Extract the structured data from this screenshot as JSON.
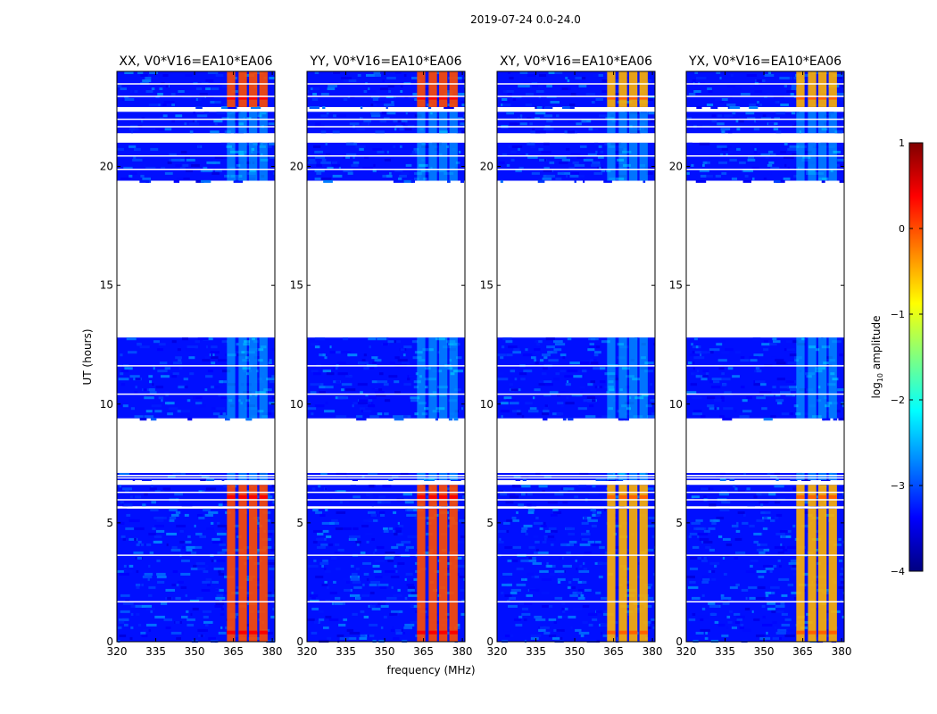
{
  "figure": {
    "title": "2019-07-24 0.0-24.0",
    "xlabel": "frequency (MHz)",
    "ylabel": "UT (hours)"
  },
  "colorbar": {
    "label": "log10 amplitude",
    "label_base": "log",
    "label_sub": "10",
    "label_rest": " amplitude",
    "range": [
      -4,
      1
    ],
    "ticks": [
      1,
      0,
      -1,
      -2,
      -3,
      -4
    ],
    "tick_labels": [
      "1",
      "0",
      "−1",
      "−2",
      "−3",
      "−4"
    ],
    "colormap": [
      "#000080",
      "#0000ff",
      "#0080ff",
      "#00ffff",
      "#80ff80",
      "#ffff00",
      "#ff8000",
      "#ff0000",
      "#800000"
    ]
  },
  "chart_data": [
    {
      "type": "heatmap",
      "title": "XX, V0*V16=EA10*EA06",
      "xlabel": "frequency (MHz)",
      "ylabel": "UT (hours)",
      "xlim": [
        320,
        381
      ],
      "ylim": [
        0,
        24
      ],
      "xticks": [
        320,
        335,
        350,
        365,
        380
      ],
      "yticks": [
        0,
        5,
        10,
        15,
        20
      ],
      "data_segments_hours": [
        [
          0,
          5.6
        ],
        [
          5.7,
          6.6
        ],
        [
          6.8,
          7.1
        ],
        [
          9.4,
          12.8
        ],
        [
          19.4,
          21.0
        ],
        [
          21.4,
          22.3
        ],
        [
          22.5,
          24
        ]
      ],
      "rfi_band_mhz": [
        362,
        380
      ],
      "rfi_log10_amplitude": 0,
      "background_log10_amplitude": -3.3
    },
    {
      "type": "heatmap",
      "title": "YY, V0*V16=EA10*EA06",
      "xlabel": "frequency (MHz)",
      "ylabel": "UT (hours)",
      "xlim": [
        320,
        381
      ],
      "ylim": [
        0,
        24
      ],
      "xticks": [
        320,
        335,
        350,
        365,
        380
      ],
      "yticks": [
        0,
        5,
        10,
        15,
        20
      ],
      "data_segments_hours": [
        [
          0,
          5.6
        ],
        [
          5.7,
          6.6
        ],
        [
          6.8,
          7.1
        ],
        [
          9.4,
          12.8
        ],
        [
          19.4,
          21.0
        ],
        [
          21.4,
          22.3
        ],
        [
          22.5,
          24
        ]
      ],
      "rfi_band_mhz": [
        362,
        380
      ],
      "rfi_log10_amplitude": 0,
      "background_log10_amplitude": -3.3
    },
    {
      "type": "heatmap",
      "title": "XY, V0*V16=EA10*EA06",
      "xlabel": "frequency (MHz)",
      "ylabel": "UT (hours)",
      "xlim": [
        320,
        381
      ],
      "ylim": [
        0,
        24
      ],
      "xticks": [
        320,
        335,
        350,
        365,
        380
      ],
      "yticks": [
        0,
        5,
        10,
        15,
        20
      ],
      "data_segments_hours": [
        [
          0,
          5.6
        ],
        [
          5.7,
          6.6
        ],
        [
          6.8,
          7.1
        ],
        [
          9.4,
          12.8
        ],
        [
          19.4,
          21.0
        ],
        [
          21.4,
          22.3
        ],
        [
          22.5,
          24
        ]
      ],
      "rfi_band_mhz": [
        362,
        380
      ],
      "rfi_log10_amplitude": -0.5,
      "background_log10_amplitude": -3.3
    },
    {
      "type": "heatmap",
      "title": "YX, V0*V16=EA10*EA06",
      "xlabel": "frequency (MHz)",
      "ylabel": "UT (hours)",
      "xlim": [
        320,
        381
      ],
      "ylim": [
        0,
        24
      ],
      "xticks": [
        320,
        335,
        350,
        365,
        380
      ],
      "yticks": [
        0,
        5,
        10,
        15,
        20
      ],
      "data_segments_hours": [
        [
          0,
          5.6
        ],
        [
          5.7,
          6.6
        ],
        [
          6.8,
          7.1
        ],
        [
          9.4,
          12.8
        ],
        [
          19.4,
          21.0
        ],
        [
          21.4,
          22.3
        ],
        [
          22.5,
          24
        ]
      ],
      "rfi_band_mhz": [
        362,
        380
      ],
      "rfi_log10_amplitude": -0.5,
      "background_log10_amplitude": -3.3
    }
  ]
}
